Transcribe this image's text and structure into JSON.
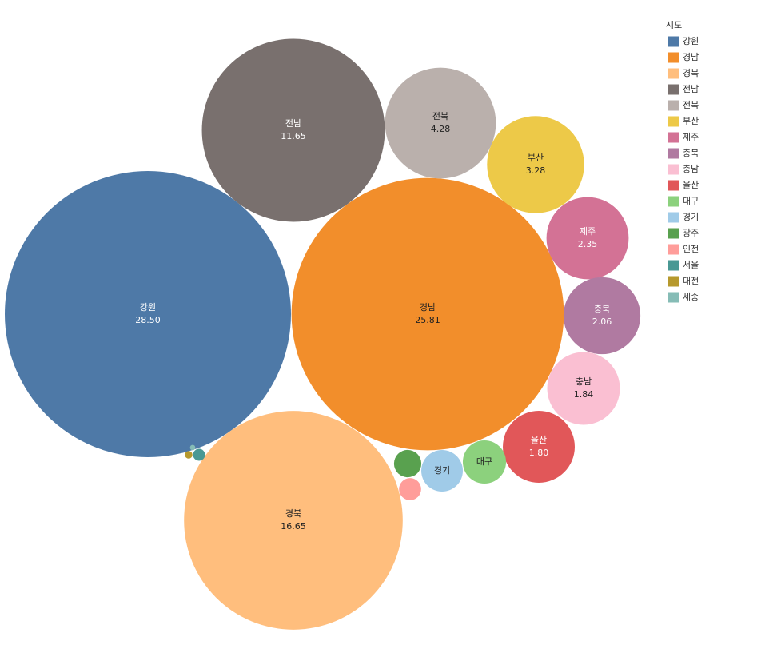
{
  "chart_data": {
    "type": "bubble",
    "legend_title": "시도",
    "legend": "top-right",
    "categories": [
      "강원",
      "경남",
      "경북",
      "전남",
      "전북",
      "부산",
      "제주",
      "충북",
      "충남",
      "울산",
      "대구",
      "경기",
      "광주",
      "인천",
      "서울",
      "대전",
      "세종"
    ],
    "values": [
      28.5,
      25.81,
      16.65,
      11.65,
      4.28,
      3.28,
      2.35,
      2.06,
      1.84,
      1.8,
      0.65,
      0.6,
      0.26,
      0.17,
      0.05,
      0.02,
      0.01
    ],
    "value_labels": [
      "28.50",
      "25.81",
      "16.65",
      "11.65",
      "4.28",
      "3.28",
      "2.35",
      "2.06",
      "1.84",
      "1.80",
      null,
      null,
      null,
      null,
      null,
      null,
      null
    ],
    "colors": [
      "#4e79a7",
      "#f28e2b",
      "#ffbe7d",
      "#79706e",
      "#bab0ac",
      "#edc948",
      "#d37295",
      "#b07aa1",
      "#fabfd2",
      "#e15759",
      "#8cd17d",
      "#a0cbe8",
      "#59a14f",
      "#ff9d9a",
      "#499894",
      "#b6992d",
      "#86bcb6"
    ]
  }
}
